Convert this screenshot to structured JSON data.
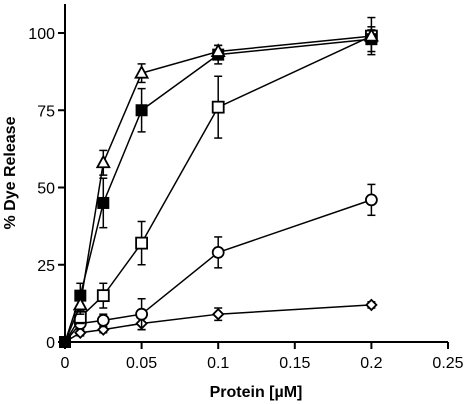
{
  "chart_data": {
    "type": "scatter",
    "title": "",
    "xlabel": "Protein [µM]",
    "ylabel": "% Dye Release",
    "xlim": [
      0,
      0.25
    ],
    "ylim": [
      0,
      100
    ],
    "xticks": [
      0,
      0.05,
      0.1,
      0.15,
      0.2,
      0.25
    ],
    "xtick_labels": [
      "0",
      "0.05",
      "0.1",
      "0.15",
      "0.2",
      "0.25"
    ],
    "yticks": [
      0,
      25,
      50,
      75,
      100
    ],
    "ytick_labels": [
      "0",
      "25",
      "50",
      "75",
      "100"
    ],
    "grid": false,
    "legend": "none",
    "series": [
      {
        "marker": "triangle-open",
        "x": [
          0,
          0.01,
          0.025,
          0.05,
          0.1,
          0.2
        ],
        "y": [
          0,
          12,
          58,
          87,
          94,
          99
        ],
        "err": [
          0,
          3,
          4,
          3,
          2,
          2
        ]
      },
      {
        "marker": "square-filled",
        "x": [
          0,
          0.01,
          0.025,
          0.05,
          0.1,
          0.2
        ],
        "y": [
          0,
          15,
          45,
          75,
          93,
          98
        ],
        "err": [
          0,
          4,
          8,
          7,
          3,
          4
        ]
      },
      {
        "marker": "square-open",
        "x": [
          0,
          0.01,
          0.025,
          0.05,
          0.1,
          0.2
        ],
        "y": [
          0,
          8,
          15,
          32,
          76,
          99
        ],
        "err": [
          0,
          2,
          4,
          7,
          10,
          6
        ]
      },
      {
        "marker": "circle-open",
        "x": [
          0,
          0.01,
          0.025,
          0.05,
          0.1,
          0.2
        ],
        "y": [
          0,
          6,
          7,
          9,
          29,
          46
        ],
        "err": [
          0,
          1,
          2,
          5,
          5,
          5
        ]
      },
      {
        "marker": "diamond-open",
        "x": [
          0,
          0.01,
          0.025,
          0.05,
          0.1,
          0.2
        ],
        "y": [
          0,
          3,
          4,
          6,
          9,
          12
        ],
        "err": [
          0,
          1,
          1,
          2,
          2,
          1
        ]
      }
    ]
  }
}
